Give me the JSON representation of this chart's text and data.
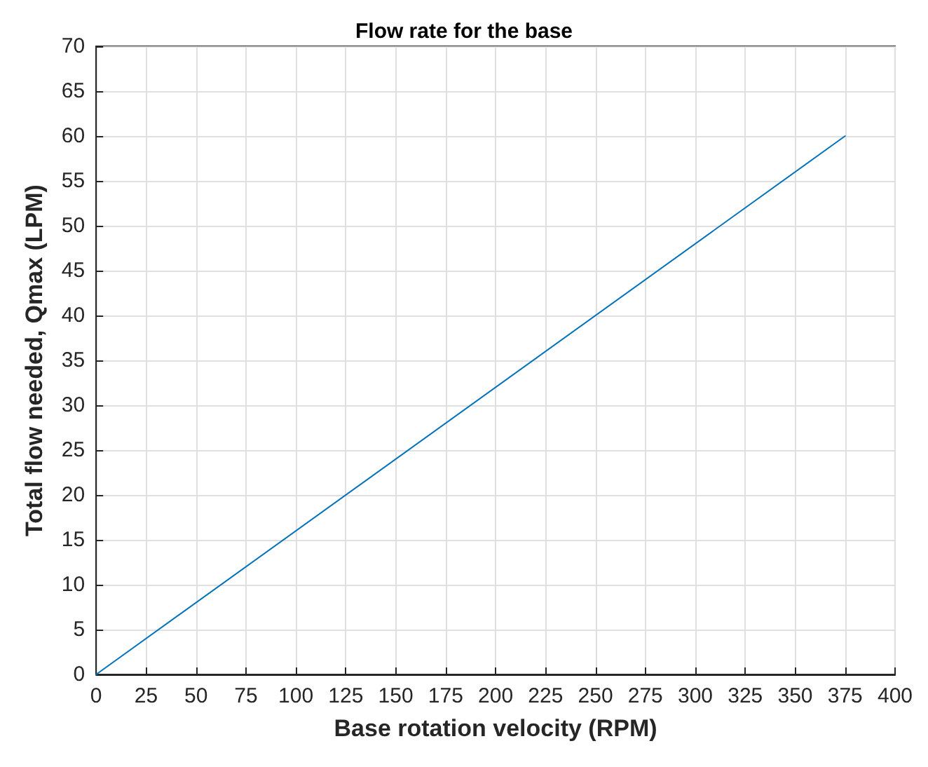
{
  "chart_data": {
    "type": "line",
    "title": "Flow rate for the base",
    "xlabel": "Base rotation velocity (RPM)",
    "ylabel": "Total flow needed, Qmax (LPM)",
    "x": [
      0,
      375
    ],
    "series": [
      {
        "color": "#0072bd",
        "values": [
          0,
          60
        ]
      }
    ],
    "xlim": [
      0,
      400
    ],
    "xticks": [
      0,
      25,
      50,
      75,
      100,
      125,
      150,
      175,
      200,
      225,
      250,
      275,
      300,
      325,
      350,
      375,
      400
    ],
    "ylim": [
      0,
      70
    ],
    "yticks": [
      0,
      5,
      10,
      15,
      20,
      25,
      30,
      35,
      40,
      45,
      50,
      55,
      60,
      65,
      70
    ],
    "grid": true,
    "marker": "none",
    "line_style": "solid"
  }
}
